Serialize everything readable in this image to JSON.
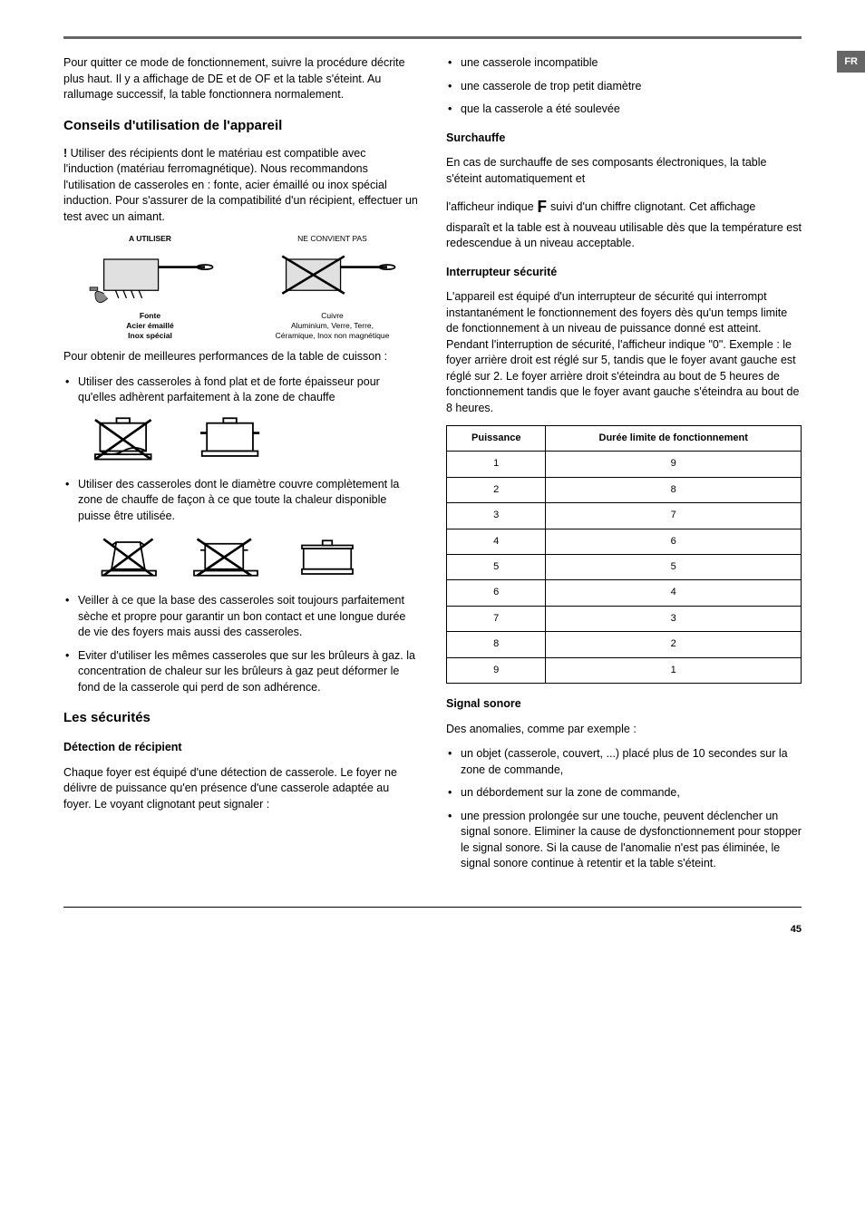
{
  "lang_tab": "FR",
  "page_number": "45",
  "left": {
    "intro": "Pour quitter ce mode de fonctionnement, suivre la procédure décrite plus haut. Il y a affichage de DE et de OF et la table s'éteint. Au rallumage successif, la table fonctionnera normalement.",
    "h2_conseils": "Conseils d'utilisation de l'appareil",
    "bang": "!",
    "bang_text": " Utiliser des récipients dont le matériau est compatible avec l'induction (matériau ferromagnétique). Nous recommandons l'utilisation de casseroles en : fonte, acier émaillé ou inox spécial induction. Pour s'assurer de la compatibilité d'un récipient, effectuer un test avec un aimant.",
    "compat_ok_title": "A UTILISER",
    "compat_ok_caption1": "Fonte",
    "compat_ok_caption2": "Acier émaillé",
    "compat_ok_caption3": "Inox spécial",
    "compat_bad_title": "NE CONVIENT PAS",
    "compat_bad_caption1": "Cuivre",
    "compat_bad_caption2": "Aluminium, Verre, Terre,",
    "compat_bad_caption3": "Céramique, Inox non magnétique",
    "perf_intro": "Pour obtenir de meilleures performances de la table de cuisson :",
    "bullet1": "Utiliser des casseroles à fond plat et de forte épaisseur pour qu'elles adhèrent parfaitement à la zone de chauffe",
    "bullet2": "Utiliser des casseroles dont le diamètre couvre complètement la zone de chauffe de façon à ce que toute la chaleur disponible puisse être utilisée.",
    "bullet3": "Veiller à ce que la base des casseroles soit toujours parfaitement sèche et propre pour garantir un bon contact et une longue durée de vie des foyers mais aussi des casseroles.",
    "bullet4": "Eviter d'utiliser les mêmes casseroles que sur les brûleurs à gaz. la concentration de chaleur sur les brûleurs à gaz peut déformer le fond de la casserole qui perd de son adhérence.",
    "h2_securites": "Les sécurités",
    "h3_detection": "Détection de récipient",
    "detection_text": "Chaque foyer est équipé d'une détection de casserole. Le foyer ne délivre de puissance qu'en présence d'une casserole adaptée au foyer. Le voyant clignotant peut signaler :"
  },
  "right": {
    "bullets_top": {
      "b1": "une casserole incompatible",
      "b2": "une casserole de trop petit diamètre",
      "b3": "que la casserole a été soulevée"
    },
    "h3_surchauffe": "Surchauffe",
    "surchauffe_p1": "En cas de surchauffe de ses composants électroniques, la table s'éteint automatiquement et",
    "surchauffe_p2a": "l'afficheur indique ",
    "surchauffe_F": "F",
    "surchauffe_p2b": " suivi d'un chiffre clignotant. Cet affichage disparaît et la table est à nouveau utilisable dès que la température est redescendue à un niveau acceptable.",
    "h3_interrupteur": "Interrupteur sécurité",
    "interrupteur_text": "L'appareil est équipé d'un interrupteur de sécurité qui interrompt instantanément le fonctionnement des foyers dès qu'un temps limite de fonctionnement à un niveau de puissance donné est atteint. Pendant l'interruption de sécurité, l'afficheur indique \"0\". Exemple : le foyer arrière droit est réglé sur 5, tandis que le foyer avant gauche est réglé sur 2. Le foyer arrière droit s'éteindra au bout de 5 heures de fonctionnement tandis que le foyer avant gauche s'éteindra au bout de 8 heures.",
    "table": {
      "col1": "Puissance",
      "col2": "Durée limite de fonctionnement",
      "rows": [
        [
          "1",
          "9"
        ],
        [
          "2",
          "8"
        ],
        [
          "3",
          "7"
        ],
        [
          "4",
          "6"
        ],
        [
          "5",
          "5"
        ],
        [
          "6",
          "4"
        ],
        [
          "7",
          "3"
        ],
        [
          "8",
          "2"
        ],
        [
          "9",
          "1"
        ]
      ]
    },
    "h3_signal": "Signal sonore",
    "signal_intro": "Des anomalies, comme par exemple :",
    "signal_b1": "un objet (casserole, couvert, ...) placé plus de 10 secondes sur la zone de commande,",
    "signal_b2": "un débordement sur la zone de commande,",
    "signal_b3": "une pression prolongée sur une touche, peuvent déclencher un signal sonore. Eliminer la cause de dysfonctionnement pour stopper le signal sonore. Si la cause de l'anomalie n'est pas éliminée, le signal sonore continue à retentir et la table s'éteint."
  }
}
